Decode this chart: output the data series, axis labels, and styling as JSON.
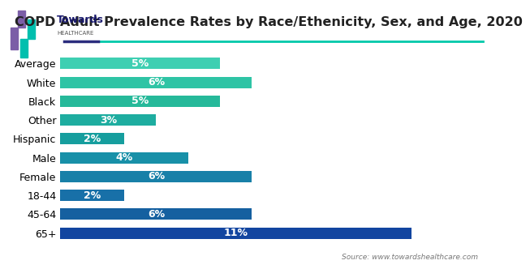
{
  "title": "COPD Adult Prevalence Rates by Race/Ethenicity, Sex, and Age, 2020",
  "source": "Source: www.towardshealthcare.com",
  "categories": [
    "Average",
    "White",
    "Black",
    "Other",
    "Hispanic",
    "Male",
    "Female",
    "18-44",
    "45-64",
    "65+"
  ],
  "values": [
    5,
    6,
    5,
    3,
    2,
    4,
    6,
    2,
    6,
    11
  ],
  "bar_colors": [
    "#3ECFB2",
    "#2EC4A5",
    "#26B99A",
    "#1EADA0",
    "#169E9E",
    "#1890A8",
    "#1880A8",
    "#1870A8",
    "#1560A0",
    "#1245A0"
  ],
  "label_color": "#ffffff",
  "background_color": "#ffffff",
  "xlim": [
    0,
    13
  ],
  "bar_height": 0.6,
  "title_fontsize": 11.5,
  "label_fontsize": 9,
  "tick_fontsize": 9,
  "logo_purple": "#7B5EA7",
  "logo_teal": "#00BFAE",
  "line_teal": "#00C9AA",
  "line_dark": "#2B2D7E"
}
